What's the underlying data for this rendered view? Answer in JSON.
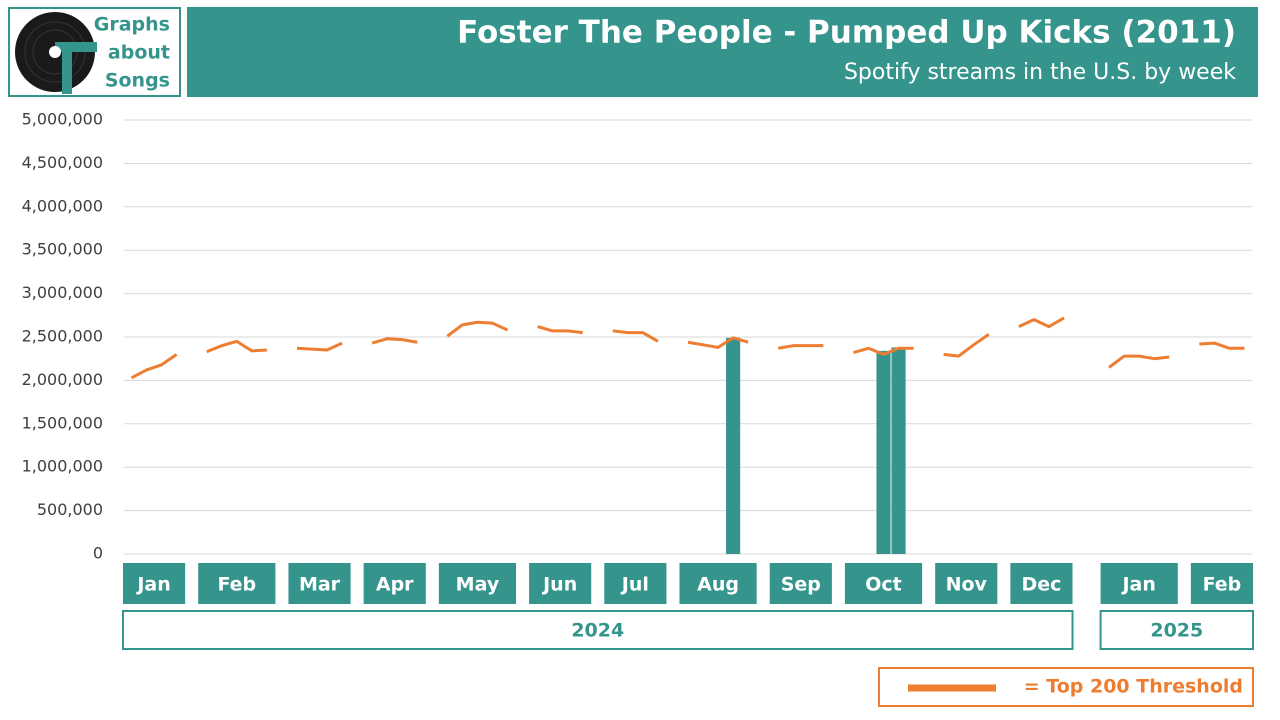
{
  "chart_data": {
    "type": "bar",
    "logo_text": [
      "Graphs",
      "about",
      "Songs"
    ],
    "title": "Foster The People - Pumped Up Kicks (2011)",
    "subtitle": "Spotify streams in the U.S. by week",
    "categories": [
      "Jan",
      "Jan",
      "Jan",
      "Jan",
      null,
      "Feb",
      "Feb",
      "Feb",
      "Feb",
      "Feb",
      null,
      "Mar",
      "Mar",
      "Mar",
      "Mar",
      null,
      "Apr",
      "Apr",
      "Apr",
      "Apr",
      null,
      "May",
      "May",
      "May",
      "May",
      "May",
      null,
      "Jun",
      "Jun",
      "Jun",
      "Jun",
      null,
      "Jul",
      "Jul",
      "Jul",
      "Jul",
      null,
      "Aug",
      "Aug",
      "Aug",
      "Aug",
      "Aug",
      null,
      "Sep",
      "Sep",
      "Sep",
      "Sep",
      null,
      "Oct",
      "Oct",
      "Oct",
      "Oct",
      "Oct",
      null,
      "Nov",
      "Nov",
      "Nov",
      "Nov",
      null,
      "Dec",
      "Dec",
      "Dec",
      "Dec",
      null,
      null,
      "Jan",
      "Jan",
      "Jan",
      "Jan",
      "Jan",
      null,
      "Feb",
      "Feb",
      "Feb",
      "Feb"
    ],
    "years": [
      "2024",
      "2025"
    ],
    "series": [
      {
        "type": "bar",
        "color": "#35958d",
        "values": [
          null,
          null,
          null,
          null,
          null,
          null,
          null,
          null,
          null,
          null,
          null,
          null,
          null,
          null,
          null,
          null,
          null,
          null,
          null,
          null,
          null,
          null,
          null,
          null,
          null,
          null,
          null,
          null,
          null,
          null,
          null,
          null,
          null,
          null,
          null,
          null,
          null,
          null,
          null,
          null,
          2490000,
          null,
          null,
          null,
          null,
          null,
          null,
          null,
          null,
          null,
          2340000,
          2380000,
          null,
          null,
          null,
          null,
          null,
          null,
          null,
          null,
          null,
          null,
          null,
          null,
          null,
          null,
          null,
          null,
          null,
          null,
          null,
          null,
          null,
          null,
          null
        ]
      },
      {
        "type": "line",
        "name": "= Top 200 Threshold",
        "color": "#ed7d31",
        "values": [
          2030000,
          2120000,
          2180000,
          2300000,
          null,
          2330000,
          2400000,
          2450000,
          2340000,
          2350000,
          null,
          2370000,
          2360000,
          2350000,
          2430000,
          null,
          2430000,
          2480000,
          2470000,
          2440000,
          null,
          2510000,
          2640000,
          2670000,
          2660000,
          2580000,
          null,
          2620000,
          2570000,
          2570000,
          2550000,
          null,
          2570000,
          2550000,
          2550000,
          2450000,
          null,
          2440000,
          2410000,
          2380000,
          2490000,
          2440000,
          null,
          2370000,
          2400000,
          2400000,
          2400000,
          null,
          2320000,
          2370000,
          2300000,
          2370000,
          2370000,
          null,
          2300000,
          2280000,
          2410000,
          2530000,
          null,
          2620000,
          2700000,
          2620000,
          2720000,
          null,
          null,
          2150000,
          2280000,
          2280000,
          2250000,
          2270000,
          null,
          2420000,
          2430000,
          2370000,
          2370000
        ]
      }
    ],
    "ylim": [
      0,
      5000000
    ],
    "yticks": [
      0,
      {
        "value": 500000,
        "label": "500,000"
      },
      {
        "value": 1000000,
        "label": "1,000,000"
      },
      {
        "value": 1500000,
        "label": "1,500,000"
      },
      {
        "value": 2000000,
        "label": "2,000,000"
      },
      {
        "value": 2500000,
        "label": "2,500,000"
      },
      {
        "value": 3000000,
        "label": "3,000,000"
      },
      {
        "value": 3500000,
        "label": "3,500,000"
      },
      {
        "value": 4000000,
        "label": "4,000,000"
      },
      {
        "value": 4500000,
        "label": "4,500,000"
      },
      {
        "value": 5000000,
        "label": "5,000,000"
      }
    ],
    "grid": true
  }
}
